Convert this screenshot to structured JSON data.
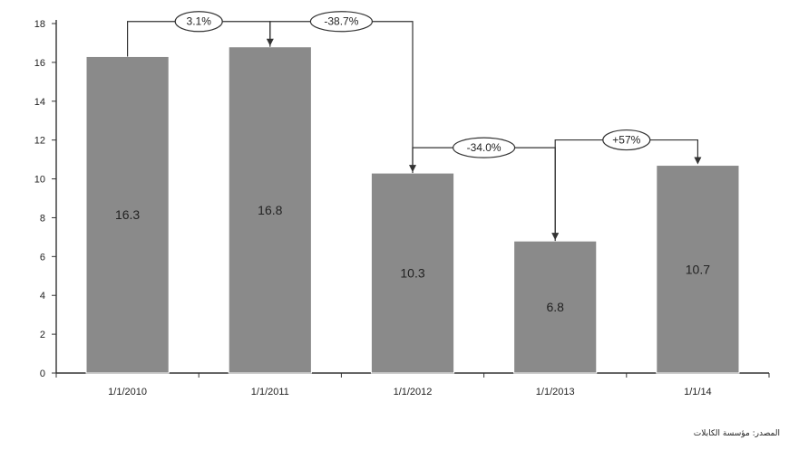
{
  "chart_data": {
    "type": "bar",
    "categories": [
      "1/1/2010",
      "1/1/2011",
      "1/1/2012",
      "1/1/2013",
      "1/1/14"
    ],
    "values": [
      16.3,
      16.8,
      10.3,
      6.8,
      10.7
    ],
    "value_labels": [
      "16.3",
      "16.8",
      "10.3",
      "6.8",
      "10.7"
    ],
    "ylim": [
      0,
      18
    ],
    "yticks": [
      0,
      2,
      4,
      6,
      8,
      10,
      12,
      14,
      16,
      18
    ],
    "grid": false,
    "legend": "none",
    "bar_color": "#8a8a8a",
    "changes": [
      {
        "from": 0,
        "to": 1,
        "label": "3.1%"
      },
      {
        "from": 1,
        "to": 2,
        "label": "-38.7%"
      },
      {
        "from": 2,
        "to": 3,
        "label": "-34.0%"
      },
      {
        "from": 3,
        "to": 4,
        "label": "+57%"
      }
    ]
  },
  "source_note": "المصدر: مؤسسة الكابلات"
}
